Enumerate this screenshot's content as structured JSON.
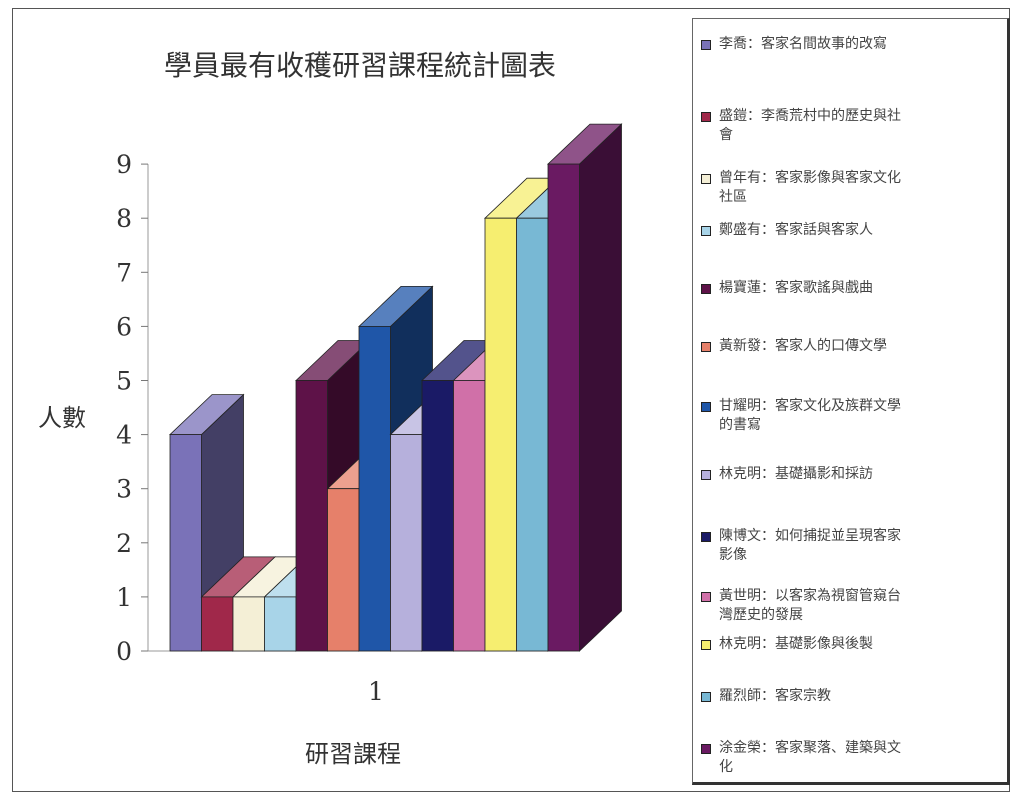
{
  "chart_data": {
    "type": "bar",
    "title": "學員最有收穫研習課程統計圖表",
    "xlabel": "研習課程",
    "ylabel": "人數",
    "categories": [
      "1"
    ],
    "ylim": [
      0,
      9
    ],
    "yticks": [
      "0",
      "1",
      "2",
      "3",
      "4",
      "5",
      "6",
      "7",
      "8",
      "9"
    ],
    "grid": false,
    "legend_position": "right",
    "series": [
      {
        "name": "李喬：客家名間故事的改寫",
        "values": [
          4
        ],
        "color": "#7a72b8"
      },
      {
        "name": "盛鎧：李喬荒村中的歷史與社會",
        "values": [
          1
        ],
        "color": "#a0284a"
      },
      {
        "name": "曾年有：客家影像與客家文化社區",
        "values": [
          1
        ],
        "color": "#f4efd6"
      },
      {
        "name": "鄭盛有：客家話與客家人",
        "values": [
          1
        ],
        "color": "#a8d4e8"
      },
      {
        "name": "楊寶蓮：客家歌謠與戲曲",
        "values": [
          5
        ],
        "color": "#5e1248"
      },
      {
        "name": "黃新發：客家人的口傳文學",
        "values": [
          3
        ],
        "color": "#e6806a"
      },
      {
        "name": "甘耀明：客家文化及族群文學的書寫",
        "values": [
          6
        ],
        "color": "#1f56a8"
      },
      {
        "name": "林克明：基礎攝影和採訪",
        "values": [
          4
        ],
        "color": "#b6b0dc"
      },
      {
        "name": "陳博文：如何捕捉並呈現客家影像",
        "values": [
          5
        ],
        "color": "#1a1a66"
      },
      {
        "name": "黃世明：以客家為視窗管窺台灣歷史的發展",
        "values": [
          5
        ],
        "color": "#d070a8"
      },
      {
        "name": "林克明：基礎影像與後製",
        "values": [
          8
        ],
        "color": "#f6ee70"
      },
      {
        "name": "羅烈師：客家宗教",
        "values": [
          8
        ],
        "color": "#78b8d4"
      },
      {
        "name": "涂金榮：客家聚落、建築與文化",
        "values": [
          9
        ],
        "color": "#6a1a62"
      }
    ]
  },
  "legend": {
    "items": [
      {
        "lines": [
          "李喬：客家名間故事的改寫"
        ]
      },
      {
        "lines": [
          "盛鎧：李喬荒村中的歷史與社",
          "會"
        ]
      },
      {
        "lines": [
          "曾年有：客家影像與客家文化",
          "社區"
        ]
      },
      {
        "lines": [
          "鄭盛有：客家話與客家人"
        ]
      },
      {
        "lines": [
          "楊寶蓮：客家歌謠與戲曲"
        ]
      },
      {
        "lines": [
          "黃新發：客家人的口傳文學"
        ]
      },
      {
        "lines": [
          "甘耀明：客家文化及族群文學",
          "的書寫"
        ]
      },
      {
        "lines": [
          "林克明：基礎攝影和採訪"
        ]
      },
      {
        "lines": [
          "陳博文：如何捕捉並呈現客家",
          "影像"
        ]
      },
      {
        "lines": [
          "黃世明：以客家為視窗管窺台",
          "灣歷史的發展"
        ]
      },
      {
        "lines": [
          "林克明：基礎影像與後製"
        ]
      },
      {
        "lines": [
          "羅烈師：客家宗教"
        ]
      },
      {
        "lines": [
          "涂金榮：客家聚落、建築與文",
          "化"
        ]
      }
    ]
  }
}
